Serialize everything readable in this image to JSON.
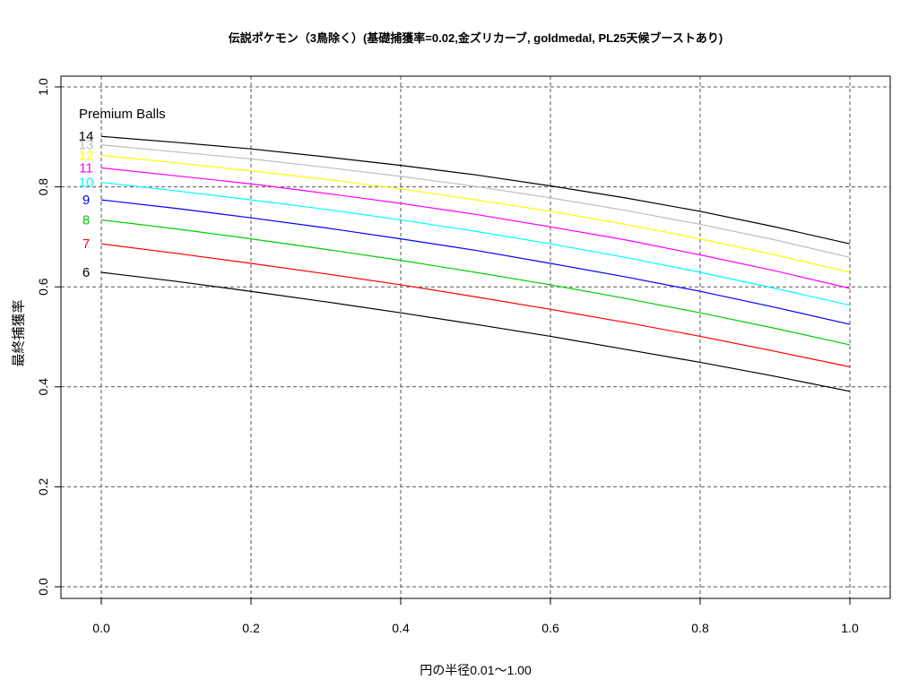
{
  "title": "伝説ポケモン（3鳥除く）(基礎捕獲率=0.02,金ズリカーブ, goldmedal, PL25天候ブーストあり)",
  "axes": {
    "xlabel": "円の半径0.01～1.00",
    "ylabel": "最終捕獲率"
  },
  "legend": {
    "title": "Premium Balls"
  },
  "chart_data": {
    "type": "line",
    "title": "伝説ポケモン（3鳥除く）(基礎捕獲率=0.02,金ズリカーブ, goldmedal, PL25天候ブーストあり)",
    "xlabel": "円の半径0.01～1.00",
    "ylabel": "最終捕獲率",
    "xlim": [
      0,
      1
    ],
    "ylim": [
      0,
      1
    ],
    "grid": "dashed",
    "grid_color": "#555555",
    "axis_color": "#000000",
    "legend_title": "Premium Balls",
    "legend_position": "top-left-inside",
    "x_ticks": {
      "values": [
        0,
        0.2,
        0.4,
        0.6,
        0.8,
        1.0
      ],
      "labels": [
        "0.0",
        "0.2",
        "0.4",
        "0.6",
        "0.8",
        "1.0"
      ]
    },
    "y_ticks": {
      "values": [
        0,
        0.2,
        0.4,
        0.6,
        0.8,
        1.0
      ],
      "labels": [
        "0.0",
        "0.2",
        "0.4",
        "0.6",
        "0.8",
        "1.0"
      ]
    },
    "x": [
      0,
      0.1,
      0.2,
      0.3,
      0.4,
      0.5,
      0.6,
      0.7,
      0.8,
      0.9,
      1.0
    ],
    "series": [
      {
        "name": "14",
        "color": "#000000",
        "values": [
          0.901,
          0.889,
          0.876,
          0.86,
          0.843,
          0.824,
          0.802,
          0.778,
          0.751,
          0.72,
          0.686
        ]
      },
      {
        "name": "13",
        "color": "#BEBEBE",
        "values": [
          0.884,
          0.87,
          0.856,
          0.839,
          0.821,
          0.801,
          0.778,
          0.753,
          0.725,
          0.694,
          0.659
        ]
      },
      {
        "name": "12",
        "color": "#FFFF00",
        "values": [
          0.863,
          0.848,
          0.832,
          0.815,
          0.796,
          0.774,
          0.751,
          0.725,
          0.696,
          0.664,
          0.629
        ]
      },
      {
        "name": "11",
        "color": "#FF00FF",
        "values": [
          0.838,
          0.822,
          0.806,
          0.787,
          0.767,
          0.745,
          0.72,
          0.694,
          0.664,
          0.632,
          0.597
        ]
      },
      {
        "name": "10",
        "color": "#00FFFF",
        "values": [
          0.809,
          0.792,
          0.774,
          0.755,
          0.734,
          0.711,
          0.686,
          0.659,
          0.629,
          0.597,
          0.563
        ]
      },
      {
        "name": "9",
        "color": "#0000FF",
        "values": [
          0.774,
          0.757,
          0.738,
          0.718,
          0.696,
          0.673,
          0.647,
          0.62,
          0.591,
          0.559,
          0.525
        ]
      },
      {
        "name": "8",
        "color": "#00CD00",
        "values": [
          0.734,
          0.716,
          0.696,
          0.675,
          0.653,
          0.629,
          0.604,
          0.577,
          0.548,
          0.517,
          0.484
        ]
      },
      {
        "name": "7",
        "color": "#FF0000",
        "values": [
          0.686,
          0.667,
          0.647,
          0.626,
          0.604,
          0.58,
          0.555,
          0.529,
          0.501,
          0.471,
          0.44
        ]
      },
      {
        "name": "6",
        "color": "#000000",
        "values": [
          0.629,
          0.611,
          0.591,
          0.57,
          0.548,
          0.525,
          0.501,
          0.475,
          0.449,
          0.421,
          0.391
        ]
      }
    ]
  }
}
